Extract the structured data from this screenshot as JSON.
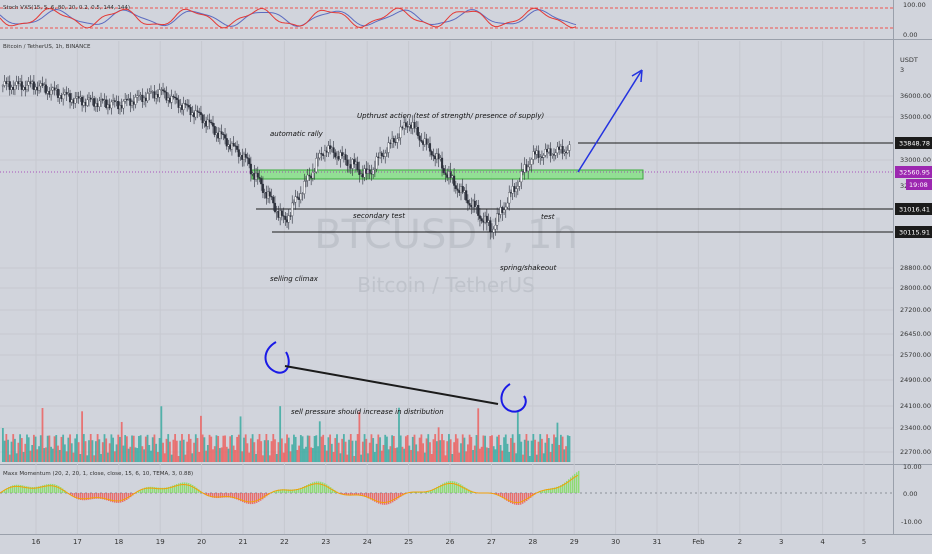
{
  "stoch_panel": {
    "label": "Stoch VXS(15, 5, 6, 80, 20, 0.2, 0.5, 144, 144)",
    "ticks": [
      "100.00",
      "0.00"
    ],
    "colors": {
      "k": "#e53935",
      "d": "#5c6bc0",
      "band": "#ef5350"
    }
  },
  "price_panel": {
    "label": "Bitcoin / TetherUS, 1h, BINANCE",
    "currency": "USDT",
    "watermark_symbol": "BTCUSDT, 1h",
    "watermark_name": "Bitcoin / TetherUS",
    "price_ticks": [
      "36000.00",
      "35000.00",
      "33000.00",
      "32",
      "28800.00",
      "28000.00",
      "27200.00",
      "26450.00",
      "25700.00",
      "24900.00",
      "24100.00",
      "23400.00",
      "22700.00"
    ],
    "top_tick": "3",
    "colors": {
      "up": "#26a69a",
      "down": "#ef5350",
      "candle": "#2a2e39",
      "zone": "#7ce37c",
      "arrow": "#2433e0",
      "annot": "#0000cc",
      "badge_price": "#9c27b0"
    },
    "current_price": "32560.95",
    "countdown": "19:08",
    "levels": [
      {
        "value": "33848.78"
      },
      {
        "value": "31016.41"
      },
      {
        "value": "30115.91"
      }
    ],
    "annotations": [
      {
        "text": "Upthrust action (test of strength/ presence of supply)"
      },
      {
        "text": "automatic rally"
      },
      {
        "text": "secondary test"
      },
      {
        "text": "test"
      },
      {
        "text": "selling climax"
      },
      {
        "text": "spring/shakeout"
      },
      {
        "text": "sell pressure should increase in distribution"
      }
    ]
  },
  "momentum_panel": {
    "label": "Maxx Momentum (20, 2, 20, 1, close, close, 15, 6, 10, TEMA, 3, 0.88)",
    "ticks": [
      "10.00",
      "0.00",
      "-10.00"
    ]
  },
  "x_axis": {
    "labels": [
      "16",
      "17",
      "18",
      "19",
      "20",
      "21",
      "22",
      "23",
      "24",
      "25",
      "26",
      "27",
      "28",
      "29",
      "30",
      "31",
      "Feb",
      "2",
      "3",
      "4",
      "5"
    ]
  },
  "chart_data": {
    "type": "line",
    "title": "Bitcoin / TetherUS, 1h, BINANCE",
    "xlabel": "",
    "ylabel": "",
    "x": [
      "16",
      "17",
      "18",
      "19",
      "20",
      "21",
      "22",
      "23",
      "24",
      "25",
      "26",
      "27",
      "28",
      "29"
    ],
    "series": [
      {
        "values": [
          36500,
          35800,
          35600,
          36200,
          35000,
          33200,
          30500,
          33600,
          32400,
          34800,
          32300,
          30200,
          33200,
          33600
        ]
      }
    ],
    "ylim": [
      22400,
      37300
    ],
    "grid": true,
    "horizontal_levels": [
      33848.78,
      32560.95,
      31016.41,
      30115.91
    ],
    "support_zone": [
      32400,
      32800
    ],
    "last_price": 32560.95
  }
}
